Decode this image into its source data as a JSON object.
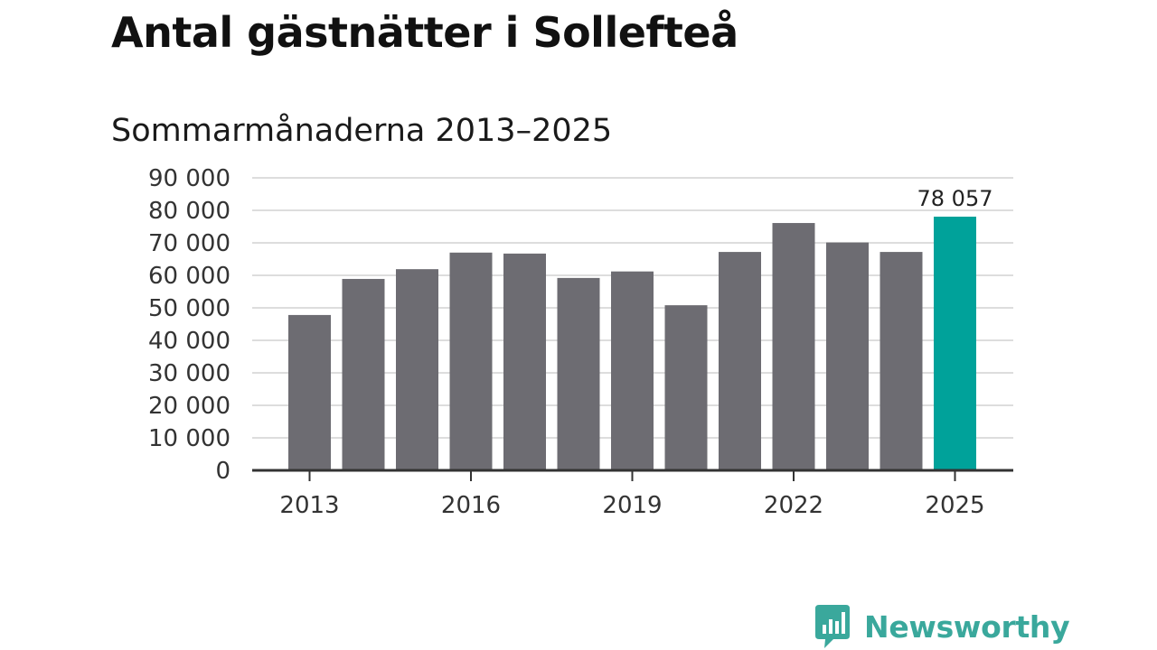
{
  "chart_data": {
    "type": "bar",
    "title": "Antal gästnätter i Sollefteå",
    "subtitle": "Sommarmånaderna 2013–2025",
    "categories": [
      "2013",
      "2014",
      "2015",
      "2016",
      "2017",
      "2018",
      "2019",
      "2020",
      "2021",
      "2022",
      "2023",
      "2024",
      "2025"
    ],
    "values": [
      47800,
      58900,
      61900,
      67000,
      66700,
      59200,
      61200,
      50800,
      67200,
      76100,
      70100,
      67200,
      78057
    ],
    "x_tick_labels": [
      "2013",
      "2016",
      "2019",
      "2022",
      "2025"
    ],
    "y_tick_labels": [
      "0",
      "10 000",
      "20 000",
      "30 000",
      "40 000",
      "50 000",
      "60 000",
      "70 000",
      "80 000",
      "90 000"
    ],
    "ylim": [
      0,
      90000
    ],
    "grid": true,
    "bar_color": "#6d6c72",
    "highlight_color": "#00a29a",
    "highlight_index": 12,
    "annotation": "78 057",
    "xlabel": "",
    "ylabel": ""
  },
  "branding": {
    "logo_text": "Newsworthy",
    "logo_color": "#3aa89c"
  }
}
